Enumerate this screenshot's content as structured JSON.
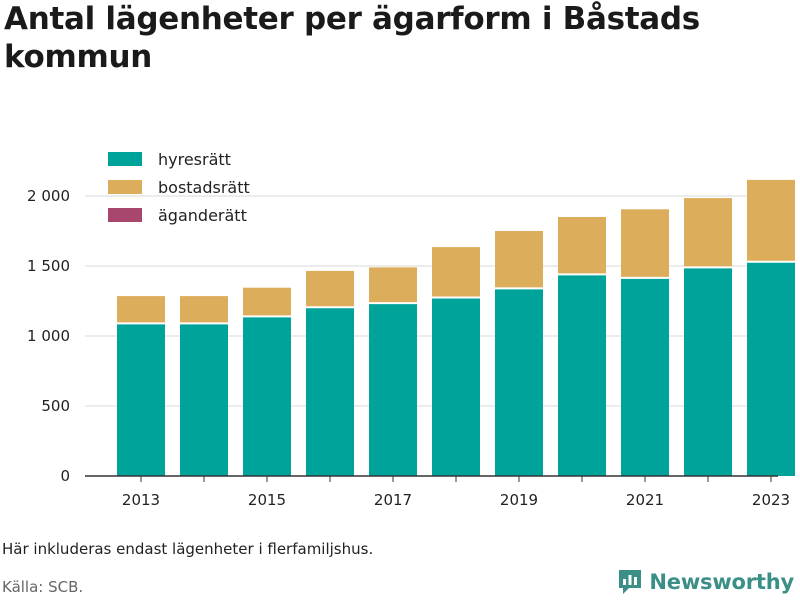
{
  "title": "Antal lägenheter per ägarform i Båstads kommun",
  "note": "Här inkluderas endast lägenheter i flerfamiljshus.",
  "source": "Källa: SCB.",
  "brand": {
    "name": "Newsworthy",
    "color": "#3a8f86",
    "icon": "newsworthy-bar-chart-icon"
  },
  "chart_data": {
    "type": "bar",
    "stacked": true,
    "x": [
      2013,
      2014,
      2015,
      2016,
      2017,
      2018,
      2019,
      2020,
      2021,
      2022,
      2023
    ],
    "x_tick_labels": [
      "2013",
      "2015",
      "2017",
      "2019",
      "2021",
      "2023"
    ],
    "y_ticks": [
      0,
      500,
      1000,
      1500,
      2000
    ],
    "y_tick_labels": [
      "0",
      "500",
      "1 000",
      "1 500",
      "2 000"
    ],
    "ylim": [
      0,
      2200
    ],
    "grid": true,
    "legend_position": "top-left",
    "series": [
      {
        "name": "hyresrätt",
        "color": "#00a39a",
        "values": [
          1090,
          1090,
          1140,
          1205,
          1235,
          1275,
          1340,
          1440,
          1415,
          1490,
          1530
        ]
      },
      {
        "name": "bostadsrätt",
        "color": "#dcad5a",
        "values": [
          195,
          195,
          205,
          260,
          255,
          360,
          410,
          410,
          490,
          495,
          585
        ]
      },
      {
        "name": "äganderätt",
        "color": "#a8466e",
        "values": [
          0,
          0,
          0,
          0,
          0,
          0,
          0,
          0,
          0,
          0,
          0
        ]
      }
    ]
  }
}
